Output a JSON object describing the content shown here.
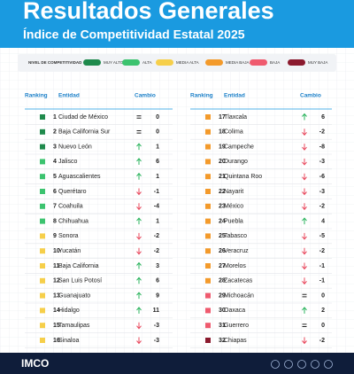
{
  "header": {
    "title": "Resultados Generales",
    "subtitle": "Índice de Competitividad Estatal 2025"
  },
  "legend": {
    "label": "NIVEL DE COMPETITIVIDAD",
    "levels": [
      {
        "name": "MUY ALTO",
        "color": "#1f8a4c"
      },
      {
        "name": "ALTA",
        "color": "#3cc36f"
      },
      {
        "name": "MEDIA ALTA",
        "color": "#f6cf4a"
      },
      {
        "name": "MEDIA BAJA",
        "color": "#f39a2b"
      },
      {
        "name": "BAJA",
        "color": "#ef5a6e"
      },
      {
        "name": "MUY BAJA",
        "color": "#8b1a2e"
      }
    ]
  },
  "table": {
    "columns": [
      "Ranking",
      "Entidad",
      "Cambio"
    ],
    "rows": [
      {
        "rank": 1,
        "entity": "Ciudad de México",
        "change": 0,
        "color": "#1f8a4c"
      },
      {
        "rank": 2,
        "entity": "Baja California Sur",
        "change": 0,
        "color": "#1f8a4c"
      },
      {
        "rank": 3,
        "entity": "Nuevo León",
        "change": 1,
        "color": "#1f8a4c"
      },
      {
        "rank": 4,
        "entity": "Jalisco",
        "change": 6,
        "color": "#3cc36f"
      },
      {
        "rank": 5,
        "entity": "Aguascalientes",
        "change": 1,
        "color": "#3cc36f"
      },
      {
        "rank": 6,
        "entity": "Querétaro",
        "change": -1,
        "color": "#3cc36f"
      },
      {
        "rank": 7,
        "entity": "Coahuila",
        "change": -4,
        "color": "#3cc36f"
      },
      {
        "rank": 8,
        "entity": "Chihuahua",
        "change": 1,
        "color": "#3cc36f"
      },
      {
        "rank": 9,
        "entity": "Sonora",
        "change": -2,
        "color": "#f6cf4a"
      },
      {
        "rank": 10,
        "entity": "Yucatán",
        "change": -2,
        "color": "#f6cf4a"
      },
      {
        "rank": 11,
        "entity": "Baja California",
        "change": 3,
        "color": "#f6cf4a"
      },
      {
        "rank": 12,
        "entity": "San Luis Potosí",
        "change": 6,
        "color": "#f6cf4a"
      },
      {
        "rank": 13,
        "entity": "Guanajuato",
        "change": 9,
        "color": "#f6cf4a"
      },
      {
        "rank": 14,
        "entity": "Hidalgo",
        "change": 11,
        "color": "#f6cf4a"
      },
      {
        "rank": 15,
        "entity": "Tamaulipas",
        "change": -3,
        "color": "#f6cf4a"
      },
      {
        "rank": 16,
        "entity": "Sinaloa",
        "change": -3,
        "color": "#f6cf4a"
      },
      {
        "rank": 17,
        "entity": "Tlaxcala",
        "change": 6,
        "color": "#f39a2b"
      },
      {
        "rank": 18,
        "entity": "Colima",
        "change": -2,
        "color": "#f39a2b"
      },
      {
        "rank": 19,
        "entity": "Campeche",
        "change": -8,
        "color": "#f39a2b"
      },
      {
        "rank": 20,
        "entity": "Durango",
        "change": -3,
        "color": "#f39a2b"
      },
      {
        "rank": 21,
        "entity": "Quintana Roo",
        "change": -6,
        "color": "#f39a2b"
      },
      {
        "rank": 22,
        "entity": "Nayarit",
        "change": -3,
        "color": "#f39a2b"
      },
      {
        "rank": 23,
        "entity": "México",
        "change": -2,
        "color": "#f39a2b"
      },
      {
        "rank": 24,
        "entity": "Puebla",
        "change": 4,
        "color": "#f39a2b"
      },
      {
        "rank": 25,
        "entity": "Tabasco",
        "change": -5,
        "color": "#f39a2b"
      },
      {
        "rank": 26,
        "entity": "Veracruz",
        "change": -2,
        "color": "#f39a2b"
      },
      {
        "rank": 27,
        "entity": "Morelos",
        "change": -1,
        "color": "#f39a2b"
      },
      {
        "rank": 28,
        "entity": "Zacatecas",
        "change": -1,
        "color": "#f39a2b"
      },
      {
        "rank": 29,
        "entity": "Michoacán",
        "change": 0,
        "color": "#ef5a6e"
      },
      {
        "rank": 30,
        "entity": "Oaxaca",
        "change": 2,
        "color": "#ef5a6e"
      },
      {
        "rank": 31,
        "entity": "Guerrero",
        "change": 0,
        "color": "#ef5a6e"
      },
      {
        "rank": 32,
        "entity": "Chiapas",
        "change": -2,
        "color": "#8b1a2e"
      }
    ]
  },
  "footer": {
    "logo": "IMCO"
  }
}
